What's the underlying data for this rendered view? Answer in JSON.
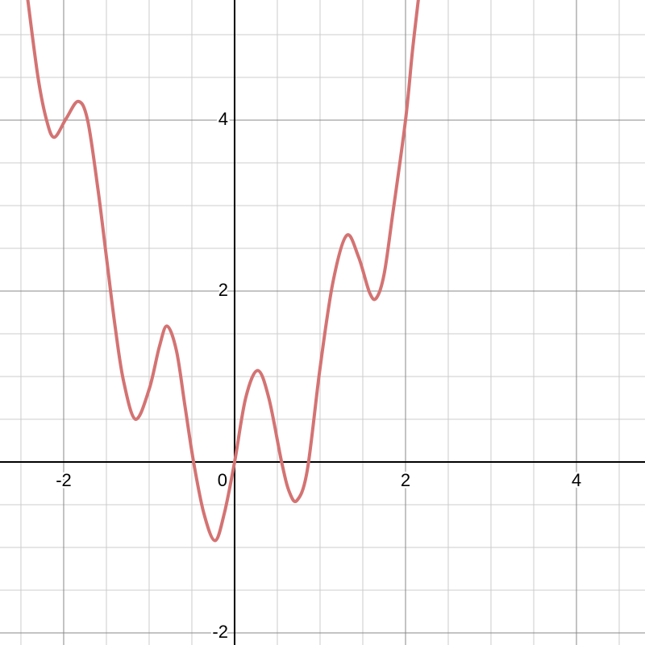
{
  "chart_data": {
    "type": "line",
    "x": [
      -2.42,
      -2.3,
      -2.2,
      -2.11,
      -1.97,
      -1.83,
      -1.72,
      -1.6,
      -1.5,
      -1.4,
      -1.3,
      -1.16,
      -1.0,
      -0.88,
      -0.79,
      -0.68,
      -0.58,
      -0.48,
      -0.36,
      -0.23,
      -0.12,
      0,
      0.13,
      0.27,
      0.4,
      0.55,
      0.64,
      0.73,
      0.85,
      1.0,
      1.15,
      1.31,
      1.45,
      1.58,
      1.66,
      1.75,
      1.85,
      2.0,
      2.08,
      2.15
    ],
    "series": [
      {
        "color": "#d47373",
        "values": [
          5.41,
          4.5,
          4.0,
          3.8,
          4.02,
          4.22,
          4.0,
          3.2,
          2.4,
          1.6,
          0.95,
          0.5,
          0.85,
          1.35,
          1.59,
          1.3,
          0.65,
          0.0,
          -0.6,
          -0.92,
          -0.6,
          0,
          0.75,
          1.07,
          0.75,
          0.0,
          -0.35,
          -0.45,
          -0.1,
          1.1,
          2.1,
          2.65,
          2.4,
          1.98,
          1.92,
          2.2,
          2.9,
          4.0,
          4.8,
          5.41
        ]
      }
    ],
    "xlim": [
      -2.745,
      4.802
    ],
    "ylim": [
      -2.142,
      5.406
    ],
    "xticks": [
      -2,
      0,
      2,
      4
    ],
    "yticks": [
      -2,
      2,
      4
    ],
    "x_minor_ticks": [
      -2.5,
      -1.5,
      -1,
      -0.5,
      0.5,
      1,
      1.5,
      2.5,
      3,
      3.5,
      4.5
    ],
    "y_minor_ticks": [
      -1.5,
      -1,
      -0.5,
      0.5,
      1,
      1.5,
      2.5,
      3,
      3.5,
      4.5,
      5
    ],
    "grid": true
  }
}
